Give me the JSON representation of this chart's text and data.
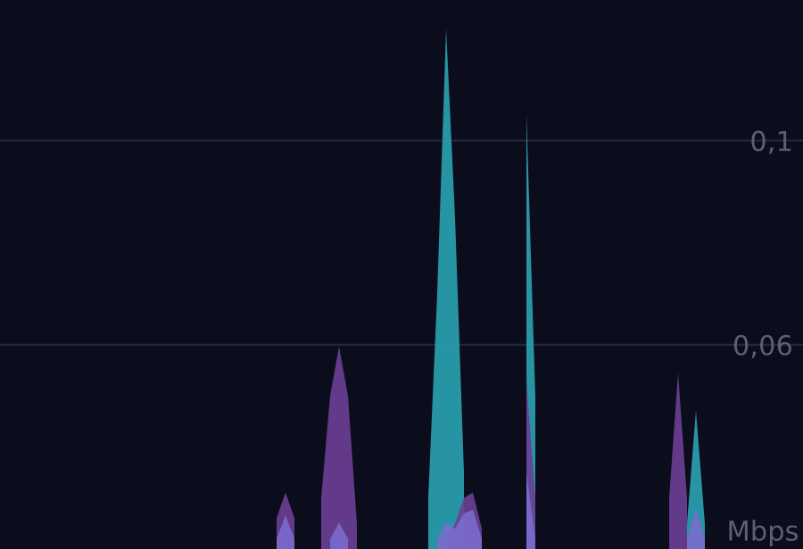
{
  "chart_data": {
    "type": "area",
    "ylabel": "Mbps",
    "categories": [
      null,
      null,
      null,
      null,
      null,
      null,
      null,
      null,
      null,
      null,
      null,
      null,
      null,
      null,
      null,
      null,
      null,
      null,
      null,
      null,
      null,
      null,
      null,
      null,
      null,
      null,
      null,
      null,
      null,
      null,
      null,
      null,
      null,
      null,
      null,
      null,
      null,
      null,
      null,
      null,
      null,
      null,
      null,
      null,
      null,
      null,
      null,
      null,
      null,
      null,
      null,
      null,
      null,
      null,
      null,
      null,
      null,
      null,
      null,
      null,
      null,
      null,
      null,
      null,
      null,
      null,
      null,
      null,
      null,
      null,
      null,
      null,
      null,
      null,
      null,
      null,
      null,
      null,
      null,
      null,
      null,
      null,
      null,
      null,
      null,
      null,
      null,
      null,
      null,
      null,
      null
    ],
    "series": [
      {
        "color": "#2aa3b3",
        "values": [
          null,
          null,
          null,
          null,
          null,
          null,
          null,
          null,
          null,
          null,
          null,
          null,
          null,
          null,
          null,
          null,
          null,
          null,
          null,
          null,
          null,
          null,
          null,
          null,
          null,
          null,
          null,
          null,
          null,
          null,
          null,
          null,
          null,
          null,
          null,
          null,
          null,
          null,
          null,
          null,
          null,
          null,
          null,
          null,
          null,
          null,
          null,
          null,
          0.03,
          0.07,
          0.1219,
          0.085,
          0.035,
          null,
          null,
          null,
          null,
          null,
          null,
          0.1052,
          0.05,
          null,
          null,
          null,
          null,
          null,
          null,
          null,
          null,
          null,
          null,
          null,
          null,
          null,
          null,
          null,
          null,
          0.025,
          0.0471,
          0.025,
          null,
          null,
          null,
          null,
          null,
          null,
          null,
          null,
          null,
          null,
          null
        ]
      },
      {
        "color": "#6b3f96",
        "values": [
          null,
          null,
          null,
          null,
          null,
          null,
          null,
          null,
          null,
          null,
          null,
          null,
          null,
          null,
          null,
          null,
          null,
          null,
          null,
          null,
          null,
          null,
          null,
          null,
          null,
          null,
          null,
          null,
          null,
          null,
          null,
          0.026,
          0.0311,
          0.026,
          null,
          null,
          0.03,
          0.05,
          0.0597,
          0.05,
          0.025,
          null,
          null,
          null,
          null,
          null,
          null,
          null,
          null,
          null,
          0.022,
          0.025,
          0.03,
          0.0311,
          0.024,
          null,
          null,
          null,
          null,
          0.0534,
          0.03,
          null,
          null,
          null,
          null,
          null,
          null,
          null,
          null,
          null,
          null,
          null,
          null,
          null,
          null,
          0.03,
          0.0545,
          0.03,
          null,
          null,
          null,
          null,
          null,
          null,
          null,
          null,
          null,
          null,
          null,
          null,
          null
        ]
      },
      {
        "color": "#7a6ccc",
        "values": [
          null,
          null,
          null,
          null,
          null,
          null,
          null,
          null,
          null,
          null,
          null,
          null,
          null,
          null,
          null,
          null,
          null,
          null,
          null,
          null,
          null,
          null,
          null,
          null,
          null,
          null,
          null,
          null,
          null,
          null,
          null,
          0.022,
          0.0266,
          0.022,
          null,
          null,
          null,
          0.022,
          0.0252,
          0.022,
          null,
          null,
          null,
          null,
          null,
          null,
          null,
          null,
          null,
          0.022,
          0.025,
          0.024,
          0.027,
          0.0277,
          0.022,
          null,
          null,
          null,
          null,
          0.035,
          0.022,
          null,
          null,
          null,
          null,
          null,
          null,
          null,
          null,
          null,
          null,
          null,
          null,
          null,
          null,
          null,
          null,
          0.022,
          0.028,
          0.022,
          null,
          null,
          null,
          null,
          null,
          null,
          null,
          null,
          null,
          null,
          null
        ]
      }
    ],
    "ylim": [
      0.02,
      0.1275
    ],
    "yticks": [
      {
        "value": 0.06,
        "label": "0,06"
      },
      {
        "value": 0.1,
        "label": "0,1"
      }
    ],
    "grid": "y",
    "tick_labels": "y"
  }
}
